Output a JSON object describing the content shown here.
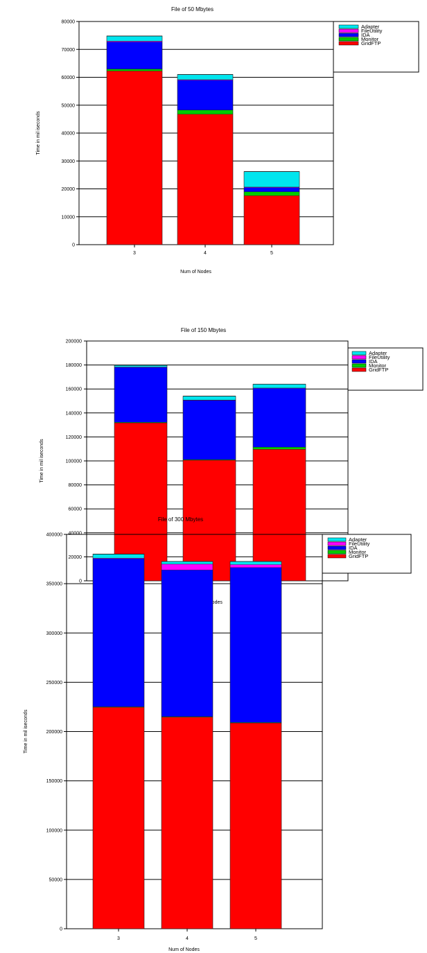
{
  "colors": {
    "Adapter": "#00e5ee",
    "FileUtility": "#ff00ff",
    "IDA": "#0000ff",
    "Monitor": "#00cc00",
    "GridFTP": "#ff0000",
    "separator": "#1a1a1a"
  },
  "chart_data": [
    {
      "type": "bar",
      "stacked": true,
      "title": "File of 50 Mbytes",
      "xlabel": "Num of Nodes",
      "ylabel": "Time in mil iseconds",
      "categories": [
        "3",
        "4",
        "5"
      ],
      "ylim": [
        0,
        80000
      ],
      "yticks": [
        "0",
        "10000",
        "20000",
        "30000",
        "40000",
        "50000",
        "60000",
        "70000",
        "80000"
      ],
      "legend_position": "top-right",
      "legend": [
        "Adapter",
        "FileUtility",
        "IDA",
        "Monitor",
        "GridFTP"
      ],
      "series": [
        {
          "name": "GridFTP",
          "values": [
            62300,
            46800,
            17600
          ]
        },
        {
          "name": "Monitor",
          "values": [
            700,
            1500,
            1400
          ]
        },
        {
          "name": "IDA",
          "values": [
            9700,
            10700,
            1500
          ]
        },
        {
          "name": "FileUtility",
          "values": [
            300,
            200,
            200
          ]
        },
        {
          "name": "Adapter",
          "values": [
            1800,
            1800,
            5500
          ]
        }
      ]
    },
    {
      "type": "bar",
      "stacked": true,
      "title": "File of 150 Mbytes",
      "xlabel": "Num of Nodes",
      "ylabel": "Time in mil iseconds",
      "categories": [
        "3",
        "4",
        "5"
      ],
      "ylim": [
        0,
        200000
      ],
      "yticks": [
        "0",
        "20000",
        "40000",
        "60000",
        "80000",
        "100000",
        "120000",
        "140000",
        "160000",
        "180000",
        "200000"
      ],
      "legend_position": "top-right",
      "legend": [
        "Adapter",
        "FileUtility",
        "IDA",
        "Monitor",
        "GridFTP"
      ],
      "series": [
        {
          "name": "GridFTP",
          "values": [
            131800,
            100700,
            109800
          ]
        },
        {
          "name": "Monitor",
          "values": [
            500,
            500,
            1800
          ]
        },
        {
          "name": "IDA",
          "values": [
            45800,
            49400,
            49000
          ]
        },
        {
          "name": "FileUtility",
          "values": [
            300,
            300,
            300
          ]
        },
        {
          "name": "Adapter",
          "values": [
            1300,
            3100,
            3100
          ]
        }
      ]
    },
    {
      "type": "bar",
      "stacked": true,
      "title": "File of 300 Mbytes",
      "xlabel": "Num of Nodes",
      "ylabel": "Time in mil iseconds",
      "categories": [
        "3",
        "4",
        "5"
      ],
      "ylim": [
        0,
        400000
      ],
      "yticks": [
        "0",
        "50000",
        "100000",
        "150000",
        "200000",
        "250000",
        "300000",
        "350000",
        "400000"
      ],
      "legend_position": "top-right",
      "legend": [
        "Adapter",
        "FileUtility",
        "IDA",
        "Monitor",
        "GridFTP"
      ],
      "series": [
        {
          "name": "GridFTP",
          "values": [
            224800,
            214800,
            208800
          ]
        },
        {
          "name": "Monitor",
          "values": [
            500,
            500,
            500
          ]
        },
        {
          "name": "IDA",
          "values": [
            150200,
            148700,
            157200
          ]
        },
        {
          "name": "FileUtility",
          "values": [
            500,
            6000,
            3000
          ]
        },
        {
          "name": "Adapter",
          "values": [
            4000,
            2500,
            3000
          ]
        }
      ]
    }
  ]
}
